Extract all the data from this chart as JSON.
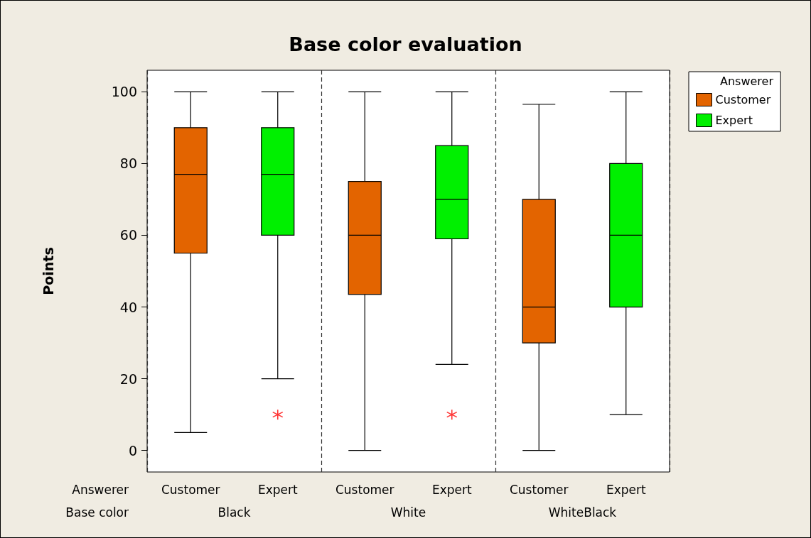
{
  "chart_data": {
    "type": "box",
    "title": "Base color evaluation",
    "ylabel": "Points",
    "legend_title": "Answerer",
    "categories": [
      "Black",
      "White",
      "WhiteBlack"
    ],
    "series": [
      {
        "name": "Customer",
        "color": "#e36400",
        "boxes": [
          {
            "low": 5,
            "q1": 55,
            "median": 77,
            "q3": 90,
            "high": 100
          },
          {
            "low": 0,
            "q1": 43.5,
            "median": 60,
            "q3": 75,
            "high": 100
          },
          {
            "low": 0,
            "q1": 30,
            "median": 40,
            "q3": 70,
            "high": 96.5
          }
        ]
      },
      {
        "name": "Expert",
        "color": "#00f000",
        "boxes": [
          {
            "low": 20,
            "q1": 60,
            "median": 77,
            "q3": 90,
            "high": 100,
            "outliers": [
              10
            ]
          },
          {
            "low": 24,
            "q1": 59,
            "median": 70,
            "q3": 85,
            "high": 100,
            "outliers": [
              10
            ]
          },
          {
            "low": 10,
            "q1": 40,
            "median": 60,
            "q3": 80,
            "high": 100
          }
        ]
      }
    ],
    "annotations": [
      "Answerer",
      "Base color"
    ],
    "ylim": [
      -6,
      106
    ],
    "yticks": [
      0,
      20,
      40,
      60,
      80,
      100
    ],
    "grid": "x",
    "legend": "top right"
  }
}
